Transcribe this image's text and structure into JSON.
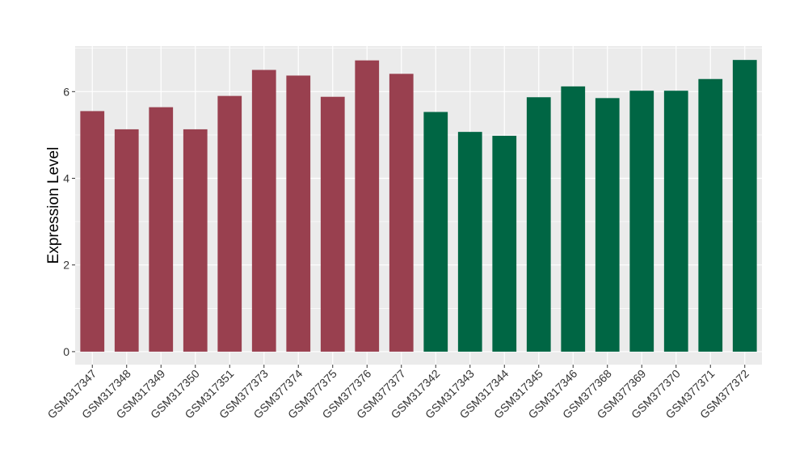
{
  "chart_data": {
    "type": "bar",
    "ylabel": "Expression Level",
    "ylim": [
      -0.3,
      7.05
    ],
    "yticks": [
      0,
      2,
      4,
      6
    ],
    "grid": true,
    "categories": [
      "GSM317347",
      "GSM317348",
      "GSM317349",
      "GSM317350",
      "GSM317351",
      "GSM377373",
      "GSM377374",
      "GSM377375",
      "GSM377376",
      "GSM377377",
      "GSM317342",
      "GSM317343",
      "GSM317344",
      "GSM317345",
      "GSM317346",
      "GSM377368",
      "GSM377369",
      "GSM377370",
      "GSM377371",
      "GSM377372"
    ],
    "values": [
      5.55,
      5.13,
      5.64,
      5.13,
      5.9,
      6.5,
      6.37,
      5.88,
      6.72,
      6.41,
      5.53,
      5.07,
      4.98,
      5.87,
      6.12,
      5.85,
      6.02,
      6.02,
      6.29,
      6.73
    ],
    "groups": [
      0,
      0,
      0,
      0,
      0,
      0,
      0,
      0,
      0,
      0,
      1,
      1,
      1,
      1,
      1,
      1,
      1,
      1,
      1,
      1
    ],
    "group_colors": [
      "#99404f",
      "#006644"
    ],
    "panel_color": "#ebebeb",
    "grid_color": "#ffffff"
  }
}
